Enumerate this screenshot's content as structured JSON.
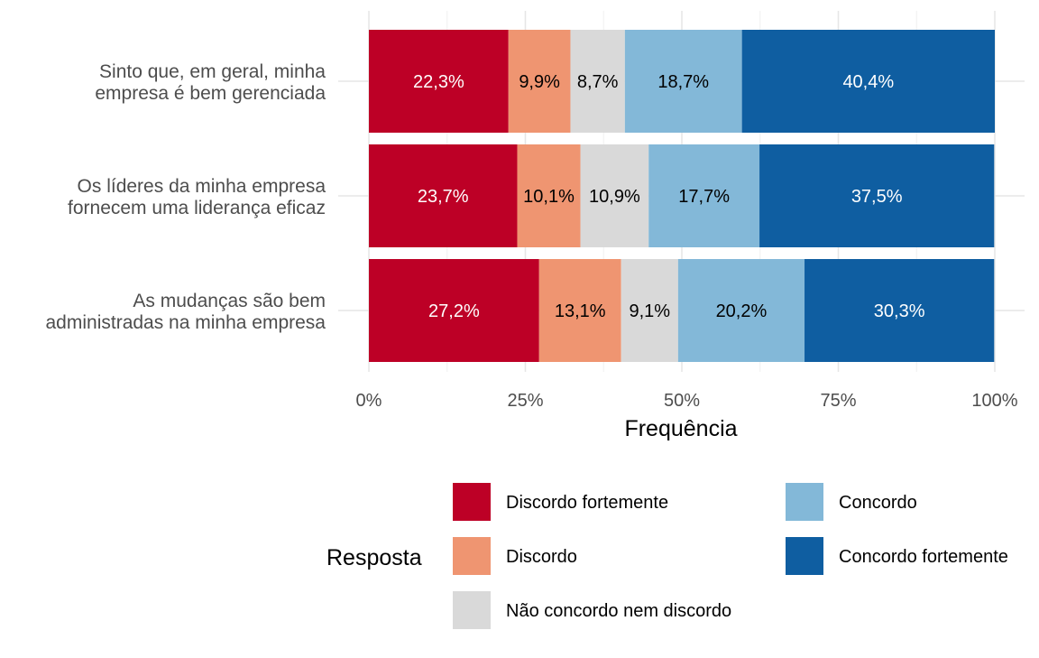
{
  "chart_data": {
    "type": "bar",
    "orientation": "horizontal",
    "stacked": true,
    "xlabel": "Frequência",
    "ylabel": "",
    "xlim": [
      0,
      100
    ],
    "x_ticks": [
      "0%",
      "25%",
      "50%",
      "75%",
      "100%"
    ],
    "grid": true,
    "categories": [
      [
        "Sinto que, em geral, minha",
        "empresa é bem gerenciada"
      ],
      [
        "Os líderes da minha empresa",
        "fornecem uma liderança eficaz"
      ],
      [
        "As mudanças são bem",
        "administradas na minha empresa"
      ]
    ],
    "series": [
      {
        "name": "Discordo fortemente",
        "color": "#BD0026",
        "label_color": "#ffffff",
        "values": [
          22.3,
          23.7,
          27.2
        ],
        "labels": [
          "22,3%",
          "23,7%",
          "27,2%"
        ]
      },
      {
        "name": "Discordo",
        "color": "#EF9571",
        "label_color": "#000000",
        "values": [
          9.9,
          10.1,
          13.1
        ],
        "labels": [
          "9,9%",
          "10,1%",
          "13,1%"
        ]
      },
      {
        "name": "Não concordo nem discordo",
        "color": "#D9D9D9",
        "label_color": "#000000",
        "values": [
          8.7,
          10.9,
          9.1
        ],
        "labels": [
          "8,7%",
          "10,9%",
          "9,1%"
        ]
      },
      {
        "name": "Concordo",
        "color": "#83B8D8",
        "label_color": "#000000",
        "values": [
          18.7,
          17.7,
          20.2
        ],
        "labels": [
          "18,7%",
          "17,7%",
          "20,2%"
        ]
      },
      {
        "name": "Concordo fortemente",
        "color": "#0F5EA1",
        "label_color": "#ffffff",
        "values": [
          40.4,
          37.5,
          30.3
        ],
        "labels": [
          "40,4%",
          "37,5%",
          "30,3%"
        ]
      }
    ],
    "legend": {
      "title": "Resposta",
      "placement": "bottom"
    }
  }
}
